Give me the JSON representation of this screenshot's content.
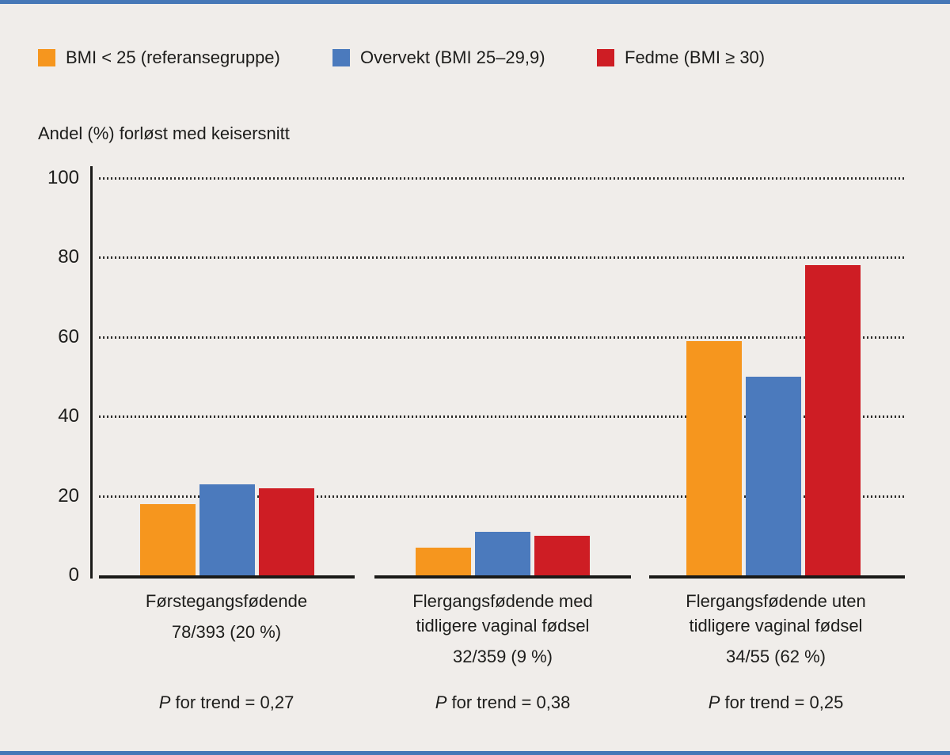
{
  "colors": {
    "background": "#F0EDEA",
    "edge_border_blue": "#4678B7",
    "text": "#1D1D1B",
    "axis": "#1A1A18",
    "grid_dots": "#2B2B29"
  },
  "chart_data": {
    "type": "bar",
    "title": "Andel (%) forløst med keisersnitt",
    "ylabel": "Andel (%) forløst med keisersnitt",
    "ylim": [
      0,
      100
    ],
    "yticks": [
      0,
      20,
      40,
      60,
      80,
      100
    ],
    "grid": "dotted horizontal lines at each ytick above 0",
    "legend_position": "top-left row",
    "series": [
      {
        "name": "BMI < 25 (referansegruppe)",
        "color": "#F6961E"
      },
      {
        "name": "Overvekt (BMI 25–29,9)",
        "color": "#4B7ABD"
      },
      {
        "name": "Fedme (BMI ≥ 30)",
        "color": "#CE1D24"
      }
    ],
    "groups": [
      {
        "label_line1": "Førstegangsfødende",
        "label_line2": "",
        "count": "78/393 (20 %)",
        "p_italic": "P",
        "p_text": " for trend = 0,27",
        "values": [
          18,
          23,
          22
        ]
      },
      {
        "label_line1": "Flergangsfødende med",
        "label_line2": "tidligere vaginal fødsel",
        "count": "32/359 (9 %)",
        "p_italic": "P",
        "p_text": " for trend = 0,38",
        "values": [
          7,
          11,
          10
        ]
      },
      {
        "label_line1": "Flergangsfødende uten",
        "label_line2": "tidligere vaginal fødsel",
        "count": "34/55 (62 %)",
        "p_italic": "P",
        "p_text": " for trend = 0,25",
        "values": [
          59,
          50,
          78
        ]
      }
    ]
  }
}
